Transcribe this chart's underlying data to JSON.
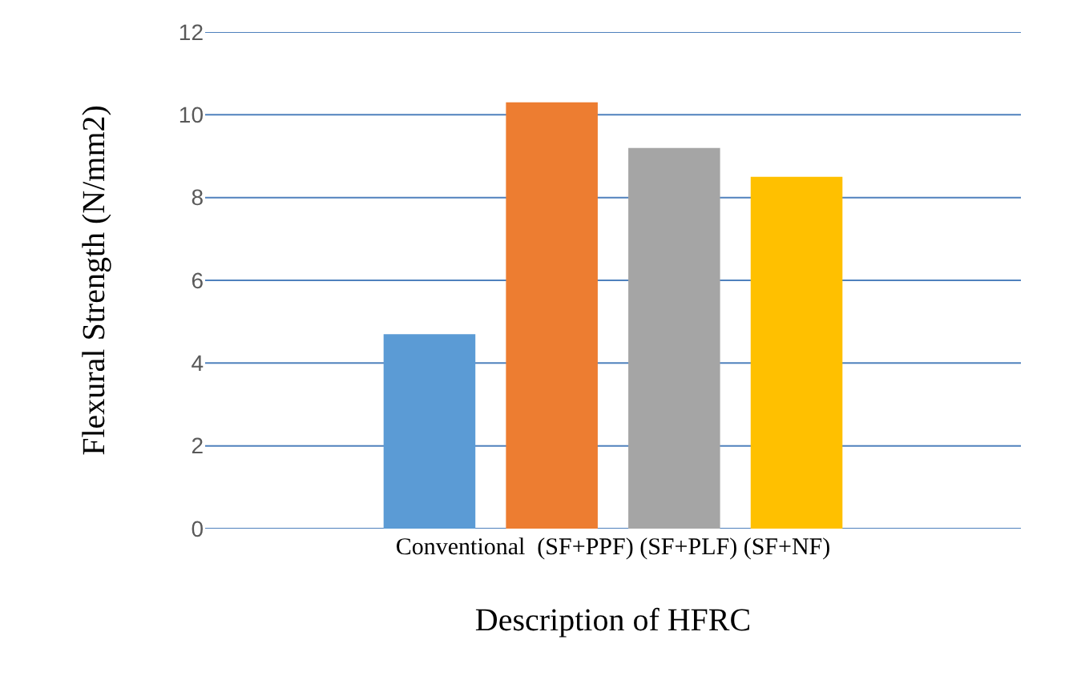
{
  "chart_data": {
    "type": "bar",
    "xlabel": "Description of HFRC",
    "ylabel": "Flexural Strength (N/mm2)",
    "categories": [
      "Conventional  (SF+PPF) (SF+PLF) (SF+NF)"
    ],
    "series": [
      {
        "color": "#5b9bd5",
        "values": [
          4.7
        ]
      },
      {
        "color": "#ed7d31",
        "values": [
          10.3
        ]
      },
      {
        "color": "#a5a5a5",
        "values": [
          9.2
        ]
      },
      {
        "color": "#ffc000",
        "values": [
          8.5
        ]
      }
    ],
    "ylim": [
      0,
      12
    ],
    "yticks": [
      0,
      2,
      4,
      6,
      8,
      10,
      12
    ],
    "grid": "y"
  }
}
